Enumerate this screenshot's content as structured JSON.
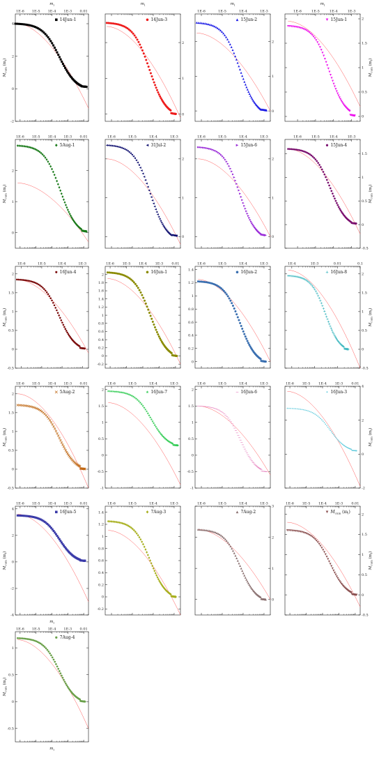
{
  "figure": {
    "top_axis_label": "m",
    "top_axis_label_sub": "i",
    "ylabel": "M",
    "ylabel_sub": "cum",
    "ylabel_unit": "(m",
    "ylabel_unit_sub": "i",
    "ylabel_unit_close": ")",
    "bottom_axis_label": "m",
    "bottom_axis_label_sub": "i"
  },
  "chart_data": [
    {
      "type": "scatter",
      "legend": "14Jun-1",
      "color": "#000000",
      "marker": "square",
      "xlim": [
        5e-07,
        0.02
      ],
      "xticks": [
        "1E-6",
        "1E-5",
        "1E-4",
        "1E-3",
        "0.01"
      ],
      "ylim": [
        -2,
        4.6
      ],
      "yticks": [
        -2,
        0,
        2,
        4
      ],
      "yaxis": "left",
      "x_start": 5e-07,
      "x_end": 0.015,
      "y_start": 4.0,
      "y_end": 0.05,
      "flat_end": 0.15,
      "fit": {
        "a": 4.05,
        "b": -1.2
      }
    },
    {
      "type": "scatter",
      "legend": "14Jun-3",
      "color": "#ee1c1c",
      "marker": "circle",
      "xlim": [
        5e-07,
        0.002
      ],
      "xticks": [],
      "ylim": [
        -0.2,
        2.8
      ],
      "yticks": [
        0,
        1,
        2
      ],
      "yaxis": "right",
      "x_start": 6e-07,
      "x_end": 0.0012,
      "y_start": 2.55,
      "y_end": 0.02,
      "flat_end": 0.0,
      "fit": {
        "a": 2.45,
        "b": -0.1
      }
    },
    {
      "type": "scatter",
      "legend": "15Jun-2",
      "color": "#1b1be6",
      "marker": "triangle-up",
      "xlim": [
        5e-07,
        0.002
      ],
      "xticks": [
        "1E-6",
        "1E-5",
        "1E-4",
        "1E-3"
      ],
      "ylim": [
        -0.3,
        2.8
      ],
      "yticks": [
        0,
        1,
        2
      ],
      "yaxis": "right",
      "x_start": 6e-07,
      "x_end": 0.0013,
      "y_start": 2.55,
      "y_end": -0.05,
      "flat_end": 0.05,
      "fit": {
        "a": 2.25,
        "b": 0.0
      }
    },
    {
      "type": "scatter",
      "legend": "15Jun-1",
      "color": "#ee14ee",
      "marker": "triangle-down",
      "xlim": [
        2e-07,
        0.003
      ],
      "xticks": [
        "1E-6",
        "1E-5",
        "1E-4",
        "1E-3"
      ],
      "ylim": [
        -0.1,
        2.1
      ],
      "yticks": [
        0,
        0.5,
        1.0,
        1.5,
        2.0
      ],
      "yaxis": "right",
      "x_start": 3e-07,
      "x_end": 0.0015,
      "y_start": 1.85,
      "y_end": 0.05,
      "flat_end": 0.0,
      "fit": {
        "a": 1.95,
        "b": 0.2
      }
    },
    {
      "type": "scatter",
      "legend": "5Aug-1",
      "color": "#1a7a1a",
      "marker": "diamond",
      "xlim": [
        5e-07,
        0.02
      ],
      "xticks": [
        "1E-6",
        "1E-5",
        "1E-4",
        "1E-3",
        "0.01"
      ],
      "ylim": [
        -0.5,
        3.0
      ],
      "yticks": [
        0,
        1,
        2
      ],
      "yaxis": "left",
      "x_start": 7e-07,
      "x_end": 0.015,
      "y_start": 2.8,
      "y_end": 0.02,
      "flat_end": 0.05,
      "fit": {
        "a": 1.6,
        "b": -0.3
      }
    },
    {
      "type": "scatter",
      "legend": "31Jul-2",
      "color": "#101070",
      "marker": "triangle-left",
      "xlim": [
        5e-07,
        0.002
      ],
      "xticks": [
        "1E-6",
        "1E-5",
        "1E-4",
        "1E-3"
      ],
      "ylim": [
        -0.3,
        2.5
      ],
      "yticks": [
        0,
        1,
        2
      ],
      "yaxis": "right",
      "x_start": 6e-07,
      "x_end": 0.0013,
      "y_start": 2.35,
      "y_end": -0.05,
      "flat_end": 0.05,
      "fit": {
        "a": 2.0,
        "b": -0.2
      }
    },
    {
      "type": "scatter",
      "legend": "15Jun-6",
      "color": "#9a2cd8",
      "marker": "triangle-right",
      "xlim": [
        5e-07,
        0.002
      ],
      "xticks": [
        "1E-6",
        "1E-5",
        "1E-4",
        "1E-3"
      ],
      "ylim": [
        -0.3,
        2.5
      ],
      "yticks": [
        0,
        1,
        2
      ],
      "yaxis": "right",
      "x_start": 7e-07,
      "x_end": 0.0012,
      "y_start": 2.3,
      "y_end": 0.0,
      "flat_end": 0.05,
      "fit": {
        "a": 2.0,
        "b": 0.0
      }
    },
    {
      "type": "scatter",
      "legend": "15Jun-4",
      "color": "#7a0f6e",
      "marker": "hexagon",
      "xlim": [
        2e-07,
        0.003
      ],
      "xticks": [
        "1E-6",
        "1E-5",
        "1E-4",
        "1E-3"
      ],
      "ylim": [
        -0.5,
        1.8
      ],
      "yticks": [
        -0.5,
        0,
        0.5,
        1.0,
        1.5
      ],
      "yaxis": "right",
      "x_start": 3e-07,
      "x_end": 0.0018,
      "y_start": 1.6,
      "y_end": 0.0,
      "flat_end": 0.03,
      "fit": {
        "a": 1.6,
        "b": -0.2
      }
    },
    {
      "type": "scatter",
      "legend": "16Jun-4",
      "color": "#7a0a0a",
      "marker": "pentagon",
      "xlim": [
        5e-07,
        0.002
      ],
      "xticks": [
        "1E-6",
        "1E-5",
        "1E-4",
        "1E-3"
      ],
      "ylim": [
        -0.5,
        2.2
      ],
      "yticks": [
        -0.5,
        0,
        0.5,
        1.0,
        1.5,
        2.0
      ],
      "yaxis": "left",
      "x_start": 6e-07,
      "x_end": 0.0013,
      "y_start": 1.85,
      "y_end": 0.02,
      "flat_end": 0.02,
      "fit": {
        "a": 1.85,
        "b": -0.1
      }
    },
    {
      "type": "scatter",
      "legend": "16Jun-1",
      "color": "#8a8a00",
      "marker": "circle",
      "xlim": [
        5e-07,
        0.02
      ],
      "xticks": [
        "1E-6",
        "1E-5",
        "1E-4",
        "1E-3",
        "0.01"
      ],
      "ylim": [
        -0.3,
        2.2
      ],
      "yticks": [
        -0.2,
        0,
        0.2,
        0.4,
        0.6,
        0.8,
        1.0,
        1.2,
        1.4,
        1.6,
        1.8,
        2.0
      ],
      "yaxis": "left",
      "x_start": 7e-07,
      "x_end": 0.012,
      "y_start": 2.05,
      "y_end": 0.0,
      "flat_end": 0.0,
      "fit": {
        "a": 1.9,
        "b": -0.2
      }
    },
    {
      "type": "scatter",
      "legend": "16Jun-2",
      "color": "#3a6fb0",
      "marker": "circle",
      "xlim": [
        5e-07,
        0.002
      ],
      "xticks": [
        "1E-6",
        "1E-5",
        "1E-4",
        "1E-3"
      ],
      "ylim": [
        -0.1,
        1.45
      ],
      "yticks": [
        0,
        0.2,
        0.4,
        0.6,
        0.8,
        1.0,
        1.2,
        1.4
      ],
      "yaxis": "left",
      "x_start": 7e-07,
      "x_end": 0.0012,
      "y_start": 1.22,
      "y_end": 0.0,
      "flat_end": 0.0,
      "fit": {
        "a": 1.25,
        "b": 0.0
      }
    },
    {
      "type": "scatter",
      "legend": "16Jun-8",
      "color": "#40b8c0",
      "marker": "cross",
      "xlim": [
        5e-05,
        0.1
      ],
      "xticks": [
        "1E-4",
        "1E-3",
        "0.01",
        "0.1"
      ],
      "ylim": [
        -0.5,
        2.2
      ],
      "yticks": [
        -0.5,
        0,
        0.5,
        1.0,
        1.5,
        2.0
      ],
      "yaxis": "right",
      "x_start": 7e-05,
      "x_end": 0.03,
      "y_start": 1.95,
      "y_end": 0.0,
      "flat_end": 0.0,
      "fit": {
        "a": 2.1,
        "b": -0.5
      }
    },
    {
      "type": "scatter",
      "legend": "5Aug-2",
      "color": "#c06a18",
      "marker": "x",
      "xlim": [
        5e-07,
        0.02
      ],
      "xticks": [
        "1E-6",
        "1E-5",
        "1E-4",
        "1E-3",
        "0.01"
      ],
      "ylim": [
        -0.5,
        2.2
      ],
      "yticks": [
        -0.5,
        0,
        0.5,
        1.0,
        1.5,
        2.0
      ],
      "yaxis": "left",
      "x_start": 7e-07,
      "x_end": 0.012,
      "y_start": 1.7,
      "y_end": 0.02,
      "flat_end": 0.0,
      "fit": {
        "a": 2.0,
        "b": -0.5
      }
    },
    {
      "type": "scatter",
      "legend": "16Jun-7",
      "color": "#33cc55",
      "marker": "star",
      "xlim": [
        5e-07,
        0.002
      ],
      "xticks": [
        "1E-6",
        "1E-5",
        "1E-4",
        "1E-3"
      ],
      "ylim": [
        -1.0,
        2.1
      ],
      "yticks": [
        -1.0,
        -0.5,
        0,
        0.5,
        1.0,
        1.5,
        2.0
      ],
      "yaxis": "left",
      "x_start": 7e-07,
      "x_end": 0.0015,
      "y_start": 1.95,
      "y_end": 0.3,
      "flat_end": 0.3,
      "fit": {
        "a": 1.6,
        "b": -0.9
      }
    },
    {
      "type": "scatter",
      "legend": "16Jun-6",
      "color": "#e889c2",
      "marker": "dash",
      "xlim": [
        5e-07,
        0.002
      ],
      "xticks": [
        "1E-6",
        "1E-5",
        "1E-4",
        "1E-3"
      ],
      "ylim": [
        -1.0,
        2.1
      ],
      "yticks": [
        -1.0,
        -0.5,
        0,
        0.5,
        1.0,
        1.5,
        2.0
      ],
      "yaxis": "left",
      "x_start": 7e-07,
      "x_end": 0.0013,
      "y_start": 1.5,
      "y_end": -0.5,
      "flat_end": -0.5,
      "fit": {
        "a": 1.5,
        "b": -0.6
      }
    },
    {
      "type": "scatter",
      "legend": "16Jun-3",
      "color": "#66ccdd",
      "marker": "dot",
      "xlim": [
        5e-07,
        0.02
      ],
      "xticks": [
        "1E-6",
        "1E-5",
        "1E-4",
        "1E-3",
        "0.01"
      ],
      "ylim": [
        -2,
        4
      ],
      "yticks": [
        -2,
        0,
        2,
        4
      ],
      "yaxis": "right",
      "x_start": 7e-07,
      "x_end": 0.012,
      "y_start": 2.7,
      "y_end": 0.2,
      "flat_end": 0.2,
      "fit": {
        "a": 3.7,
        "b": -1.9
      }
    },
    {
      "type": "scatter",
      "legend": "16Jun-5",
      "color": "#3a3aa8",
      "marker": "square",
      "xlim": [
        5e-07,
        0.02
      ],
      "xticks": [
        "1E-6",
        "1E-5",
        "1E-4",
        "1E-3",
        "0.01"
      ],
      "ylim": [
        -4,
        4.2
      ],
      "yticks": [
        -4,
        -2,
        0,
        2,
        4
      ],
      "yaxis": "left",
      "x_start": 7e-07,
      "x_end": 0.012,
      "y_start": 3.5,
      "y_end": 0.05,
      "flat_end": 0.1,
      "fit": {
        "a": 3.6,
        "b": -3.0
      }
    },
    {
      "type": "scatter",
      "legend": "7Aug-3",
      "color": "#a8b020",
      "marker": "diamond",
      "xlim": [
        5e-07,
        0.002
      ],
      "xticks": [
        "1E-6",
        "1E-5",
        "1E-4",
        "1E-3"
      ],
      "ylim": [
        -0.3,
        1.5
      ],
      "yticks": [
        -0.2,
        0,
        0.2,
        0.4,
        0.6,
        0.8,
        1.0,
        1.2,
        1.4
      ],
      "yaxis": "left",
      "x_start": 7e-07,
      "x_end": 0.0012,
      "y_start": 1.25,
      "y_end": 0.0,
      "flat_end": 0.0,
      "fit": {
        "a": 1.1,
        "b": -0.3
      }
    },
    {
      "type": "scatter",
      "legend": "7Aug-2",
      "color": "#8a7070",
      "marker": "triangle-up",
      "xlim": [
        5e-07,
        0.002
      ],
      "xticks": [
        "1E-6",
        "1E-5",
        "1E-4",
        "1E-3"
      ],
      "ylim": [
        -0.5,
        3.0
      ],
      "yticks": [
        0,
        1,
        2,
        3
      ],
      "yaxis": "right",
      "x_start": 7e-07,
      "x_end": 0.0012,
      "y_start": 2.25,
      "y_end": 0.0,
      "flat_end": 0.0,
      "fit": {
        "a": 2.25,
        "b": 0.0
      }
    },
    {
      "type": "scatter",
      "legend": "",
      "color": "#8b5050",
      "marker": "triangle-down",
      "xlim": [
        5e-07,
        0.02
      ],
      "xticks": [
        "1E-6",
        "1E-5",
        "1E-4",
        "1E-3",
        "0.01"
      ],
      "ylim": [
        -0.5,
        2.2
      ],
      "yticks": [
        -0.5,
        0,
        0.5,
        1.0,
        1.5,
        2.0
      ],
      "yaxis": "right",
      "x_start": 7e-07,
      "x_end": 0.012,
      "y_start": 1.6,
      "y_end": 0.0,
      "flat_end": 0.0,
      "fit": {
        "a": 1.8,
        "b": -0.3
      }
    },
    {
      "type": "scatter",
      "legend": "7Aug-4",
      "color": "#6aa04a",
      "marker": "hexagon",
      "xlim": [
        5e-07,
        0.02
      ],
      "xticks": [
        "1E-6",
        "1E-5",
        "1E-4",
        "1E-3",
        "0.01"
      ],
      "ylim": [
        -0.75,
        1.3
      ],
      "yticks": [
        -0.5,
        0,
        0.5,
        1.0
      ],
      "yaxis": "left",
      "x_start": 7e-07,
      "x_end": 0.012,
      "y_start": 1.18,
      "y_end": 0.0,
      "flat_end": 0.0,
      "fit": {
        "a": 1.15,
        "b": -0.5
      }
    }
  ]
}
